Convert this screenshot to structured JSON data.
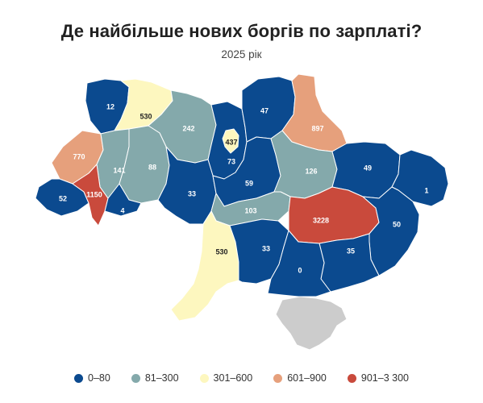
{
  "title": "Де найбільше нових боргів по зарплаті?",
  "subtitle": "2025 рік",
  "colors": {
    "c1": "#0b4a8f",
    "c2": "#84a9ab",
    "c3": "#fdf7bf",
    "c4": "#e6a07c",
    "c5": "#c94a3c",
    "nodata": "#cccccc"
  },
  "legend": [
    {
      "label": "0–80",
      "color": "#0b4a8f"
    },
    {
      "label": "81–300",
      "color": "#84a9ab"
    },
    {
      "label": "301–600",
      "color": "#fdf7bf"
    },
    {
      "label": "601–900",
      "color": "#e6a07c"
    },
    {
      "label": "901–3 300",
      "color": "#c94a3c"
    }
  ],
  "regions": [
    {
      "id": "volyn",
      "value": "12"
    },
    {
      "id": "rivne",
      "value": "530"
    },
    {
      "id": "zhytomyr",
      "value": "242"
    },
    {
      "id": "kyiv-oblast",
      "value": "73"
    },
    {
      "id": "kyiv-city",
      "value": "437"
    },
    {
      "id": "chernihiv",
      "value": "47"
    },
    {
      "id": "sumy",
      "value": "897"
    },
    {
      "id": "lviv",
      "value": "770"
    },
    {
      "id": "ternopil",
      "value": "141"
    },
    {
      "id": "khmelnytskyi",
      "value": "88"
    },
    {
      "id": "vinnytsia",
      "value": "33"
    },
    {
      "id": "cherkasy",
      "value": "59"
    },
    {
      "id": "poltava",
      "value": "126"
    },
    {
      "id": "kharkiv",
      "value": "49"
    },
    {
      "id": "luhansk",
      "value": "1"
    },
    {
      "id": "zakarpattia",
      "value": "52"
    },
    {
      "id": "ivano-frankivsk",
      "value": "1150"
    },
    {
      "id": "chernivtsi",
      "value": "4"
    },
    {
      "id": "kirovohrad",
      "value": "103"
    },
    {
      "id": "dnipropetrovsk",
      "value": "3228"
    },
    {
      "id": "donetsk",
      "value": "50"
    },
    {
      "id": "odesa",
      "value": "530"
    },
    {
      "id": "mykolaiv",
      "value": "33"
    },
    {
      "id": "zaporizhzhia",
      "value": "35"
    },
    {
      "id": "kherson",
      "value": "0"
    }
  ]
}
